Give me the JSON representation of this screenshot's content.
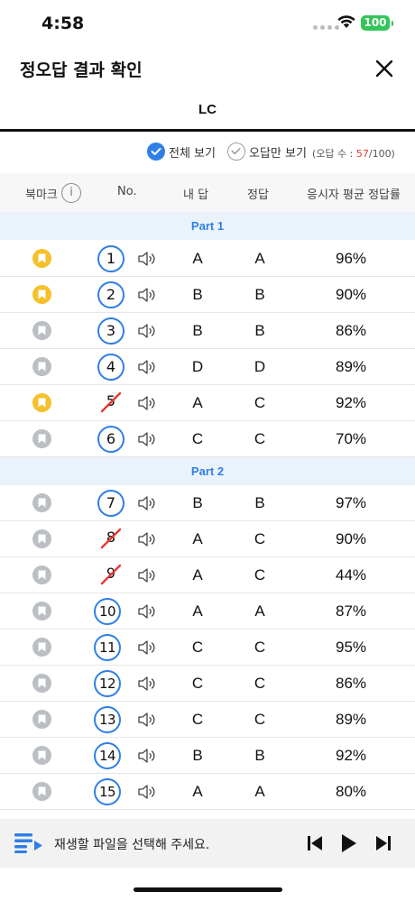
{
  "status_bar": {
    "time": "4:58",
    "battery": "100"
  },
  "header": {
    "title": "정오답 결과 확인"
  },
  "tabs": [
    {
      "label": "LC",
      "active": true
    }
  ],
  "filters": {
    "all_label": "전체 보기",
    "wrong_label": "오답만 보기",
    "wrong_prefix": "(오답 수 : ",
    "wrong_count": "57",
    "wrong_total": "/100)"
  },
  "table_header": {
    "bookmark": "북마크",
    "no": "No.",
    "my_answer": "내 답",
    "answer": "정답",
    "rate": "응시자 평균 정답률"
  },
  "parts": [
    {
      "label": "Part 1",
      "rows": [
        {
          "no": "1",
          "bookmarked": true,
          "correct": true,
          "my": "A",
          "answer": "A",
          "rate": "96%"
        },
        {
          "no": "2",
          "bookmarked": true,
          "correct": true,
          "my": "B",
          "answer": "B",
          "rate": "90%"
        },
        {
          "no": "3",
          "bookmarked": false,
          "correct": true,
          "my": "B",
          "answer": "B",
          "rate": "86%"
        },
        {
          "no": "4",
          "bookmarked": false,
          "correct": true,
          "my": "D",
          "answer": "D",
          "rate": "89%"
        },
        {
          "no": "5",
          "bookmarked": true,
          "correct": false,
          "my": "A",
          "answer": "C",
          "rate": "92%"
        },
        {
          "no": "6",
          "bookmarked": false,
          "correct": true,
          "my": "C",
          "answer": "C",
          "rate": "70%"
        }
      ]
    },
    {
      "label": "Part 2",
      "rows": [
        {
          "no": "7",
          "bookmarked": false,
          "correct": true,
          "my": "B",
          "answer": "B",
          "rate": "97%"
        },
        {
          "no": "8",
          "bookmarked": false,
          "correct": false,
          "my": "A",
          "answer": "C",
          "rate": "90%"
        },
        {
          "no": "9",
          "bookmarked": false,
          "correct": false,
          "my": "A",
          "answer": "C",
          "rate": "44%"
        },
        {
          "no": "10",
          "bookmarked": false,
          "correct": true,
          "my": "A",
          "answer": "A",
          "rate": "87%"
        },
        {
          "no": "11",
          "bookmarked": false,
          "correct": true,
          "my": "C",
          "answer": "C",
          "rate": "95%"
        },
        {
          "no": "12",
          "bookmarked": false,
          "correct": true,
          "my": "C",
          "answer": "C",
          "rate": "86%"
        },
        {
          "no": "13",
          "bookmarked": false,
          "correct": true,
          "my": "C",
          "answer": "C",
          "rate": "89%"
        },
        {
          "no": "14",
          "bookmarked": false,
          "correct": true,
          "my": "B",
          "answer": "B",
          "rate": "92%"
        },
        {
          "no": "15",
          "bookmarked": false,
          "correct": true,
          "my": "A",
          "answer": "A",
          "rate": "80%"
        }
      ]
    }
  ],
  "player": {
    "message": "재생할 파일을 선택해 주세요."
  },
  "colors": {
    "accent": "#2f7fe6",
    "bookmark_on": "#f5c02a",
    "bookmark_off": "#bbbfc4",
    "wrong": "#e53935",
    "part_bg": "#eaf3fc"
  },
  "icons": {
    "close": "close-icon",
    "info": "info-icon",
    "speaker": "speaker-icon",
    "bookmark": "bookmark-icon",
    "playlist": "playlist-icon",
    "prev": "prev-icon",
    "play": "play-icon",
    "next": "next-icon"
  }
}
